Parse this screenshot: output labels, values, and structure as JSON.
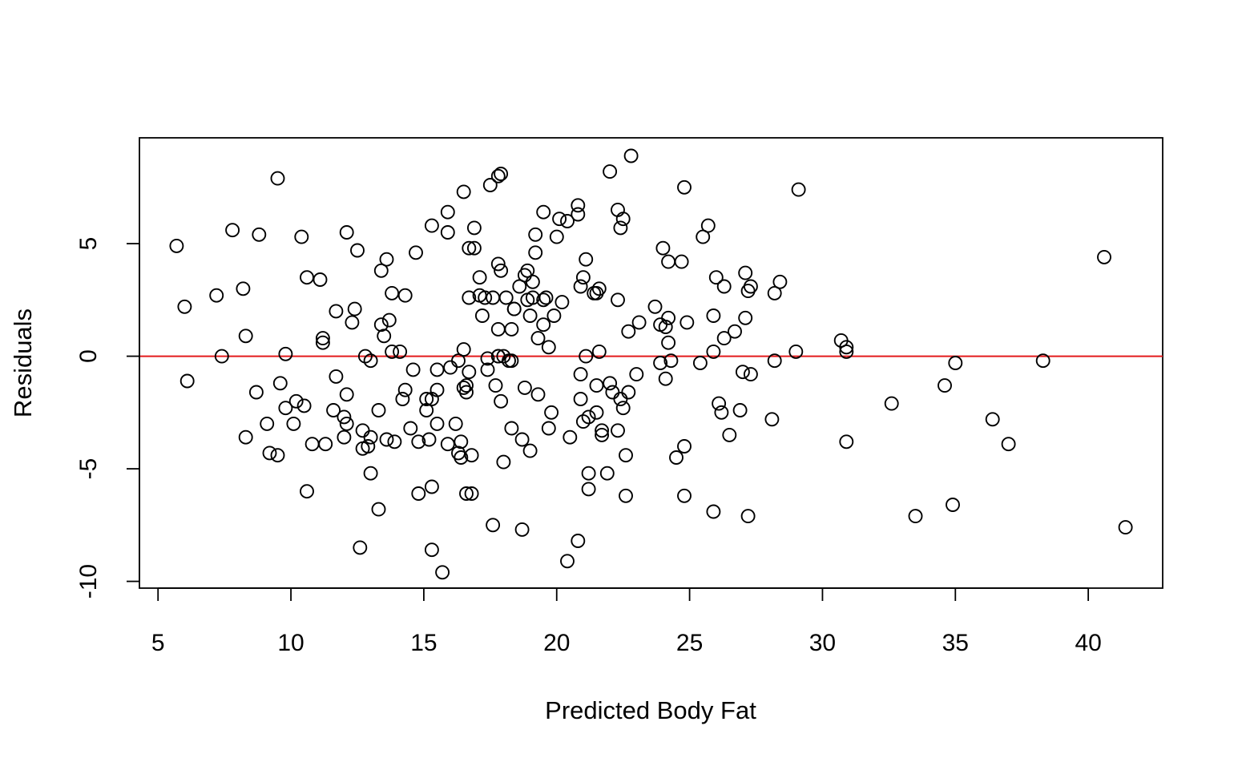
{
  "chart_data": {
    "type": "scatter",
    "title": "",
    "xlabel": "Predicted Body Fat",
    "ylabel": "Residuals",
    "xlim": [
      4.3,
      42.8
    ],
    "ylim": [
      -10.3,
      9.7
    ],
    "xticks": [
      "5",
      "10",
      "15",
      "20",
      "25",
      "30",
      "35",
      "40"
    ],
    "yticks": [
      "-10",
      "-5",
      "0",
      "5"
    ],
    "reference_line": {
      "y": 0,
      "color": "#e31a1c"
    },
    "point_style": "open-circle",
    "point_color": "#000000",
    "grid": false,
    "legend": "none",
    "points": [
      [
        5.7,
        4.9
      ],
      [
        6.0,
        2.2
      ],
      [
        6.1,
        -1.1
      ],
      [
        7.2,
        2.7
      ],
      [
        7.4,
        0.0
      ],
      [
        7.8,
        5.6
      ],
      [
        8.2,
        3.0
      ],
      [
        8.3,
        0.9
      ],
      [
        8.3,
        -3.6
      ],
      [
        8.7,
        -1.6
      ],
      [
        8.8,
        5.4
      ],
      [
        9.1,
        -3.0
      ],
      [
        9.2,
        -4.3
      ],
      [
        9.5,
        7.9
      ],
      [
        9.5,
        -4.4
      ],
      [
        9.6,
        -1.2
      ],
      [
        9.8,
        -2.3
      ],
      [
        9.8,
        0.1
      ],
      [
        10.1,
        -3.0
      ],
      [
        10.2,
        -2.0
      ],
      [
        10.4,
        5.3
      ],
      [
        10.5,
        -2.2
      ],
      [
        10.6,
        -6.0
      ],
      [
        10.6,
        3.5
      ],
      [
        10.8,
        -3.9
      ],
      [
        11.1,
        3.4
      ],
      [
        11.2,
        0.8
      ],
      [
        11.2,
        0.6
      ],
      [
        11.3,
        -3.9
      ],
      [
        11.6,
        -2.4
      ],
      [
        11.7,
        2.0
      ],
      [
        11.7,
        -0.9
      ],
      [
        12.0,
        -2.7
      ],
      [
        12.0,
        -3.6
      ],
      [
        12.1,
        5.5
      ],
      [
        12.1,
        -1.7
      ],
      [
        12.1,
        -3.0
      ],
      [
        12.3,
        1.5
      ],
      [
        12.4,
        2.1
      ],
      [
        12.5,
        4.7
      ],
      [
        12.6,
        -8.5
      ],
      [
        12.7,
        -4.1
      ],
      [
        12.7,
        -3.3
      ],
      [
        12.8,
        0.0
      ],
      [
        12.9,
        -4.0
      ],
      [
        13.0,
        -0.2
      ],
      [
        13.0,
        -3.6
      ],
      [
        13.0,
        -5.2
      ],
      [
        13.3,
        -6.8
      ],
      [
        13.3,
        -2.4
      ],
      [
        13.4,
        1.4
      ],
      [
        13.4,
        3.8
      ],
      [
        13.5,
        0.9
      ],
      [
        13.6,
        4.3
      ],
      [
        13.6,
        -3.7
      ],
      [
        13.7,
        1.6
      ],
      [
        13.8,
        2.8
      ],
      [
        13.8,
        0.2
      ],
      [
        13.9,
        -3.8
      ],
      [
        14.1,
        0.2
      ],
      [
        14.2,
        -1.9
      ],
      [
        14.3,
        -1.5
      ],
      [
        14.3,
        2.7
      ],
      [
        14.5,
        -3.2
      ],
      [
        14.6,
        -0.6
      ],
      [
        14.7,
        4.6
      ],
      [
        14.8,
        -6.1
      ],
      [
        14.8,
        -3.8
      ],
      [
        15.1,
        -2.4
      ],
      [
        15.1,
        -1.9
      ],
      [
        15.2,
        -3.7
      ],
      [
        15.3,
        -1.9
      ],
      [
        15.3,
        5.8
      ],
      [
        15.3,
        -5.8
      ],
      [
        15.3,
        -8.6
      ],
      [
        15.5,
        -0.6
      ],
      [
        15.5,
        -3.0
      ],
      [
        15.5,
        -1.5
      ],
      [
        15.7,
        -9.6
      ],
      [
        15.9,
        5.5
      ],
      [
        15.9,
        6.4
      ],
      [
        15.9,
        -3.9
      ],
      [
        16.0,
        -0.5
      ],
      [
        16.2,
        -3.0
      ],
      [
        16.3,
        -0.2
      ],
      [
        16.3,
        -4.3
      ],
      [
        16.4,
        -3.8
      ],
      [
        16.4,
        -4.5
      ],
      [
        16.5,
        0.3
      ],
      [
        16.5,
        -1.4
      ],
      [
        16.5,
        7.3
      ],
      [
        16.6,
        -1.3
      ],
      [
        16.6,
        -1.6
      ],
      [
        16.6,
        -6.1
      ],
      [
        16.7,
        2.6
      ],
      [
        16.7,
        4.8
      ],
      [
        16.7,
        -0.7
      ],
      [
        16.8,
        -4.4
      ],
      [
        16.8,
        -6.1
      ],
      [
        16.9,
        5.7
      ],
      [
        16.9,
        4.8
      ],
      [
        17.1,
        3.5
      ],
      [
        17.1,
        2.7
      ],
      [
        17.2,
        1.8
      ],
      [
        17.3,
        2.6
      ],
      [
        17.4,
        -0.1
      ],
      [
        17.4,
        -0.6
      ],
      [
        17.5,
        7.6
      ],
      [
        17.6,
        2.6
      ],
      [
        17.6,
        -7.5
      ],
      [
        17.7,
        -1.3
      ],
      [
        17.8,
        0.0
      ],
      [
        17.8,
        4.1
      ],
      [
        17.8,
        0.0
      ],
      [
        17.8,
        1.2
      ],
      [
        17.8,
        8.0
      ],
      [
        17.9,
        8.1
      ],
      [
        17.9,
        3.8
      ],
      [
        17.9,
        -2.0
      ],
      [
        18.0,
        -4.7
      ],
      [
        18.0,
        0.0
      ],
      [
        18.1,
        2.6
      ],
      [
        18.2,
        -0.2
      ],
      [
        18.3,
        -3.2
      ],
      [
        18.3,
        -0.2
      ],
      [
        18.3,
        1.2
      ],
      [
        18.4,
        2.1
      ],
      [
        18.4,
        2.1
      ],
      [
        18.6,
        3.1
      ],
      [
        18.7,
        -3.7
      ],
      [
        18.7,
        -7.7
      ],
      [
        18.8,
        -1.4
      ],
      [
        18.8,
        3.6
      ],
      [
        18.9,
        2.5
      ],
      [
        18.9,
        3.8
      ],
      [
        19.0,
        1.8
      ],
      [
        19.0,
        -4.2
      ],
      [
        19.1,
        2.6
      ],
      [
        19.1,
        3.3
      ],
      [
        19.2,
        5.4
      ],
      [
        19.2,
        4.6
      ],
      [
        19.3,
        0.8
      ],
      [
        19.3,
        -1.7
      ],
      [
        19.5,
        1.4
      ],
      [
        19.5,
        2.5
      ],
      [
        19.5,
        6.4
      ],
      [
        19.6,
        2.6
      ],
      [
        19.7,
        0.4
      ],
      [
        19.7,
        -3.2
      ],
      [
        19.8,
        -2.5
      ],
      [
        19.9,
        1.8
      ],
      [
        20.0,
        5.3
      ],
      [
        20.1,
        6.1
      ],
      [
        20.2,
        2.4
      ],
      [
        20.4,
        -9.1
      ],
      [
        20.4,
        6.0
      ],
      [
        20.5,
        -3.6
      ],
      [
        20.8,
        6.3
      ],
      [
        20.8,
        6.7
      ],
      [
        20.8,
        -8.2
      ],
      [
        20.9,
        3.1
      ],
      [
        20.9,
        -0.8
      ],
      [
        20.9,
        -1.9
      ],
      [
        21.0,
        3.5
      ],
      [
        21.0,
        -2.9
      ],
      [
        21.1,
        0.0
      ],
      [
        21.1,
        4.3
      ],
      [
        21.2,
        -2.7
      ],
      [
        21.2,
        -5.2
      ],
      [
        21.2,
        -5.9
      ],
      [
        21.4,
        2.8
      ],
      [
        21.5,
        2.8
      ],
      [
        21.5,
        -2.5
      ],
      [
        21.5,
        -1.3
      ],
      [
        21.6,
        0.2
      ],
      [
        21.6,
        3.0
      ],
      [
        21.7,
        -3.3
      ],
      [
        21.7,
        -3.5
      ],
      [
        21.9,
        -5.2
      ],
      [
        22.0,
        8.2
      ],
      [
        22.0,
        -1.2
      ],
      [
        22.1,
        -1.6
      ],
      [
        22.3,
        -3.3
      ],
      [
        22.3,
        2.5
      ],
      [
        22.3,
        6.5
      ],
      [
        22.4,
        5.7
      ],
      [
        22.4,
        -1.9
      ],
      [
        22.5,
        6.1
      ],
      [
        22.5,
        -2.3
      ],
      [
        22.6,
        -4.4
      ],
      [
        22.6,
        -6.2
      ],
      [
        22.7,
        1.1
      ],
      [
        22.7,
        -1.6
      ],
      [
        22.8,
        8.9
      ],
      [
        23.0,
        -0.8
      ],
      [
        23.1,
        1.5
      ],
      [
        23.7,
        2.2
      ],
      [
        23.9,
        -0.3
      ],
      [
        23.9,
        1.4
      ],
      [
        24.0,
        4.8
      ],
      [
        24.1,
        -1.0
      ],
      [
        24.1,
        1.3
      ],
      [
        24.2,
        4.2
      ],
      [
        24.2,
        1.7
      ],
      [
        24.2,
        0.6
      ],
      [
        24.3,
        -0.2
      ],
      [
        24.5,
        -4.5
      ],
      [
        24.7,
        4.2
      ],
      [
        24.8,
        7.5
      ],
      [
        24.8,
        -6.2
      ],
      [
        24.8,
        -4.0
      ],
      [
        24.9,
        1.5
      ],
      [
        25.4,
        -0.3
      ],
      [
        25.5,
        5.3
      ],
      [
        25.7,
        5.8
      ],
      [
        25.9,
        0.2
      ],
      [
        25.9,
        1.8
      ],
      [
        25.9,
        -6.9
      ],
      [
        26.0,
        3.5
      ],
      [
        26.1,
        -2.1
      ],
      [
        26.2,
        -2.5
      ],
      [
        26.3,
        3.1
      ],
      [
        26.3,
        0.8
      ],
      [
        26.5,
        -3.5
      ],
      [
        26.7,
        1.1
      ],
      [
        26.9,
        -2.4
      ],
      [
        27.0,
        -0.7
      ],
      [
        27.1,
        3.7
      ],
      [
        27.1,
        1.7
      ],
      [
        27.2,
        -7.1
      ],
      [
        27.2,
        2.9
      ],
      [
        27.3,
        -0.8
      ],
      [
        27.3,
        3.1
      ],
      [
        28.1,
        -2.8
      ],
      [
        28.2,
        2.8
      ],
      [
        28.2,
        -0.2
      ],
      [
        28.4,
        3.3
      ],
      [
        29.0,
        0.2
      ],
      [
        29.1,
        7.4
      ],
      [
        30.7,
        0.7
      ],
      [
        30.9,
        0.4
      ],
      [
        30.9,
        0.2
      ],
      [
        30.9,
        -3.8
      ],
      [
        32.6,
        -2.1
      ],
      [
        33.5,
        -7.1
      ],
      [
        34.6,
        -1.3
      ],
      [
        34.9,
        -6.6
      ],
      [
        35.0,
        -0.3
      ],
      [
        36.4,
        -2.8
      ],
      [
        37.0,
        -3.9
      ],
      [
        38.3,
        -0.2
      ],
      [
        40.6,
        4.4
      ],
      [
        41.4,
        -7.6
      ]
    ]
  }
}
